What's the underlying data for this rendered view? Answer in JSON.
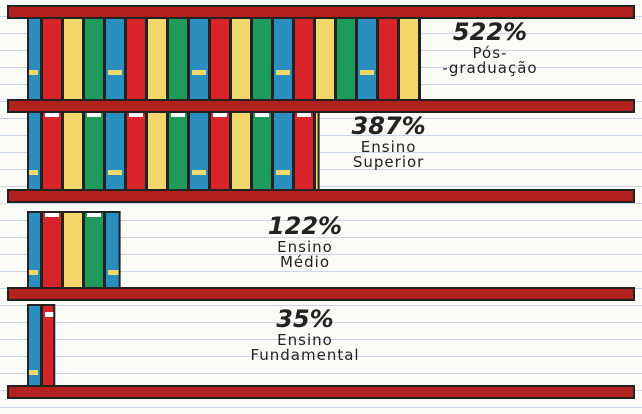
{
  "chart_data": {
    "type": "bookshelf",
    "categories": [
      "Pós-\n-graduação",
      "Ensino\nSuperior",
      "Ensino\nMédio",
      "Ensino\nFundamental"
    ],
    "values": [
      522,
      387,
      122,
      35
    ],
    "value_labels": [
      "522%",
      "387%",
      "122%",
      "35%"
    ],
    "shelf_color": "#b3211e"
  }
}
